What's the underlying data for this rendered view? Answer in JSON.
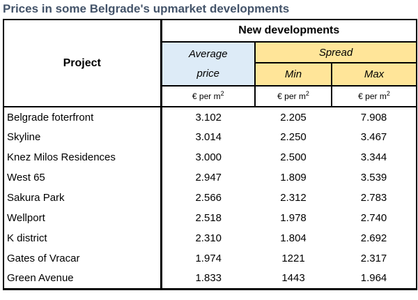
{
  "title": "Prices in some Belgrade's upmarket developments",
  "colors": {
    "title_text": "#44546A",
    "avg_fill": "#DDEBF7",
    "spread_fill": "#FFE599",
    "border": "#000000",
    "background": "#FFFFFF"
  },
  "table": {
    "project_header": "Project",
    "group_header": "New developments",
    "avg_header_line1": "Average",
    "avg_header_line2": "price",
    "spread_header": "Spread",
    "min_header": "Min",
    "max_header": "Max",
    "unit_base": "€ per m",
    "unit_sup": "2",
    "rows": [
      {
        "project": "Belgrade foterfront",
        "avg": "3.102",
        "min": "2.205",
        "max": "7.908"
      },
      {
        "project": "Skyline",
        "avg": "3.014",
        "min": "2.250",
        "max": "3.467"
      },
      {
        "project": "Knez Milos Residences",
        "avg": "3.000",
        "min": "2.500",
        "max": "3.344"
      },
      {
        "project": "West 65",
        "avg": "2.947",
        "min": "1.809",
        "max": "3.539"
      },
      {
        "project": "Sakura Park",
        "avg": "2.566",
        "min": "2.312",
        "max": "2.783"
      },
      {
        "project": "Wellport",
        "avg": "2.518",
        "min": "1.978",
        "max": "2.740"
      },
      {
        "project": "K district",
        "avg": "2.310",
        "min": "1.804",
        "max": "2.692"
      },
      {
        "project": "Gates of Vracar",
        "avg": "1.974",
        "min": "1221",
        "max": "2.317"
      },
      {
        "project": "Green Avenue",
        "avg": "1.833",
        "min": "1443",
        "max": "1.964"
      }
    ]
  },
  "chart_data": {
    "type": "table",
    "title": "Prices in some Belgrade's upmarket developments",
    "group_header": "New developments",
    "columns": [
      "Project",
      "Average price (€ per m2)",
      "Spread Min (€ per m2)",
      "Spread Max (€ per m2)"
    ],
    "rows": [
      {
        "project": "Belgrade foterfront",
        "average_price": 3102,
        "min": 2205,
        "max": 7908
      },
      {
        "project": "Skyline",
        "average_price": 3014,
        "min": 2250,
        "max": 3467
      },
      {
        "project": "Knez Milos Residences",
        "average_price": 3000,
        "min": 2500,
        "max": 3344
      },
      {
        "project": "West 65",
        "average_price": 2947,
        "min": 1809,
        "max": 3539
      },
      {
        "project": "Sakura Park",
        "average_price": 2566,
        "min": 2312,
        "max": 2783
      },
      {
        "project": "Wellport",
        "average_price": 2518,
        "min": 1978,
        "max": 2740
      },
      {
        "project": "K district",
        "average_price": 2310,
        "min": 1804,
        "max": 2692
      },
      {
        "project": "Gates of Vracar",
        "average_price": 1974,
        "min": 1221,
        "max": 2317
      },
      {
        "project": "Green Avenue",
        "average_price": 1833,
        "min": 1443,
        "max": 1964
      }
    ]
  }
}
